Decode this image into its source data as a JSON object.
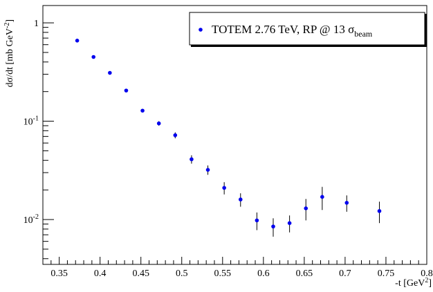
{
  "chart_data": {
    "type": "scatter",
    "title": "",
    "xlabel": "-t [GeV",
    "xlabel_sup": "2",
    "xlabel_close": "]",
    "ylabel": "dσ/dt [mb GeV",
    "ylabel_sup": "-2",
    "ylabel_close": "]",
    "x_scale": "linear",
    "y_scale": "log",
    "xlim": [
      0.33,
      0.8
    ],
    "ylim": [
      0.0035,
      1.5
    ],
    "x_ticks": [
      {
        "value": 0.35,
        "label": "0.35"
      },
      {
        "value": 0.4,
        "label": "0.4"
      },
      {
        "value": 0.45,
        "label": "0.45"
      },
      {
        "value": 0.5,
        "label": "0.5"
      },
      {
        "value": 0.55,
        "label": "0.55"
      },
      {
        "value": 0.6,
        "label": "0.6"
      },
      {
        "value": 0.65,
        "label": "0.65"
      },
      {
        "value": 0.7,
        "label": "0.7"
      },
      {
        "value": 0.75,
        "label": "0.75"
      },
      {
        "value": 0.8,
        "label": "0.8"
      }
    ],
    "y_ticks": [
      {
        "value": 1,
        "base": "1",
        "exp": ""
      },
      {
        "value": 0.1,
        "base": "10",
        "exp": "-1"
      },
      {
        "value": 0.01,
        "base": "10",
        "exp": "-2"
      }
    ],
    "grid": false,
    "legend_position": "top-right",
    "marker_color": "#0000ee",
    "series": [
      {
        "name": "TOTEM 2.76 TeV, RP @ 13 σ",
        "name_sub": "beam",
        "points": [
          {
            "x": 0.372,
            "y": 0.66,
            "err": 0.015
          },
          {
            "x": 0.392,
            "y": 0.45,
            "err": 0.012
          },
          {
            "x": 0.412,
            "y": 0.31,
            "err": 0.009
          },
          {
            "x": 0.432,
            "y": 0.205,
            "err": 0.007
          },
          {
            "x": 0.452,
            "y": 0.128,
            "err": 0.005
          },
          {
            "x": 0.472,
            "y": 0.095,
            "err": 0.005
          },
          {
            "x": 0.492,
            "y": 0.072,
            "err": 0.005
          },
          {
            "x": 0.512,
            "y": 0.041,
            "err": 0.004
          },
          {
            "x": 0.532,
            "y": 0.032,
            "err": 0.0035
          },
          {
            "x": 0.552,
            "y": 0.021,
            "err": 0.003
          },
          {
            "x": 0.572,
            "y": 0.016,
            "err": 0.0025
          },
          {
            "x": 0.592,
            "y": 0.0098,
            "err": 0.002
          },
          {
            "x": 0.612,
            "y": 0.0085,
            "err": 0.0018
          },
          {
            "x": 0.632,
            "y": 0.0092,
            "err": 0.0018
          },
          {
            "x": 0.652,
            "y": 0.013,
            "err": 0.0032
          },
          {
            "x": 0.672,
            "y": 0.017,
            "err": 0.0045
          },
          {
            "x": 0.702,
            "y": 0.0148,
            "err": 0.0028
          },
          {
            "x": 0.742,
            "y": 0.0122,
            "err": 0.003
          }
        ]
      }
    ]
  }
}
